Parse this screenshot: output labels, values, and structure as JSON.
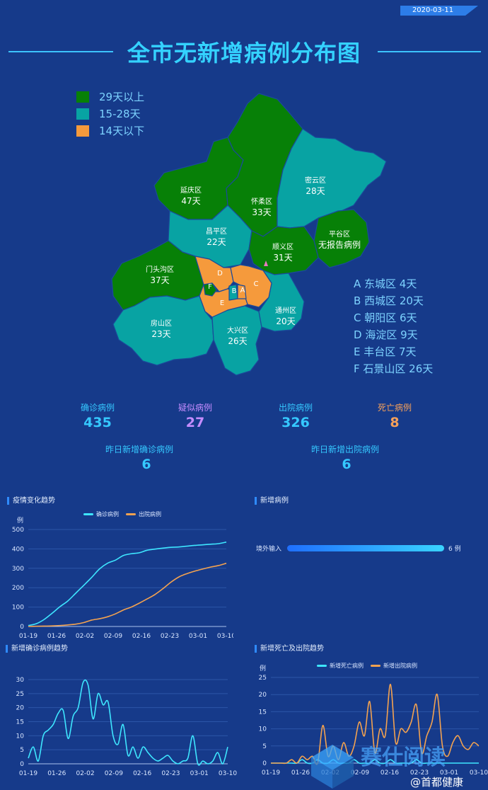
{
  "date": "2020-03-11",
  "title": "全市无新增病例分布图",
  "legend": [
    {
      "label": "29天以上",
      "color": "#078007"
    },
    {
      "label": "15-28天",
      "color": "#08a3a3"
    },
    {
      "label": "14天以下",
      "color": "#f59a3c"
    }
  ],
  "districts": [
    {
      "name": "延庆区",
      "days": "47天"
    },
    {
      "name": "怀柔区",
      "days": "33天"
    },
    {
      "name": "密云区",
      "days": "28天"
    },
    {
      "name": "昌平区",
      "days": "22天"
    },
    {
      "name": "平谷区",
      "days": "无报告病例"
    },
    {
      "name": "顺义区",
      "days": "31天"
    },
    {
      "name": "门头沟区",
      "days": "37天"
    },
    {
      "name": "房山区",
      "days": "23天"
    },
    {
      "name": "大兴区",
      "days": "26天"
    },
    {
      "name": "通州区",
      "days": "20天"
    }
  ],
  "map_letters": [
    "D",
    "C",
    "B",
    "A",
    "F",
    "E"
  ],
  "urban": [
    "A 东城区 4天",
    "B 西城区 20天",
    "C 朝阳区 6天",
    "D 海淀区 9天",
    "E 丰台区 7天",
    "F 石景山区 26天"
  ],
  "stats": [
    {
      "label": "确诊病例",
      "value": "435",
      "color": "#35c8ff"
    },
    {
      "label": "疑似病例",
      "value": "27",
      "color": "#c48cff"
    },
    {
      "label": "出院病例",
      "value": "326",
      "color": "#35c8ff"
    },
    {
      "label": "死亡病例",
      "value": "8",
      "color": "#f5a05a"
    }
  ],
  "yesterday": [
    {
      "label": "昨日新增确诊病例",
      "value": "6"
    },
    {
      "label": "昨日新增出院病例",
      "value": "6"
    }
  ],
  "panels": {
    "trend": "疫情变化趋势",
    "new_cases": "新增病例",
    "new_confirmed": "新增确诊病例趋势",
    "death_discharge": "新增死亡及出院趋势"
  },
  "watermark": {
    "brand": "赛仕阅读",
    "weibo": "@首都健康"
  },
  "chart_data": [
    {
      "type": "line",
      "title": "疫情变化趋势",
      "ylabel": "例",
      "ylim": [
        0,
        500
      ],
      "yticks": [
        0,
        100,
        200,
        300,
        400,
        500
      ],
      "xticks": [
        "01-19",
        "01-26",
        "02-02",
        "02-09",
        "02-16",
        "02-23",
        "03-01",
        "03-10"
      ],
      "x": [
        "01-19",
        "01-21",
        "01-23",
        "01-25",
        "01-27",
        "01-29",
        "01-31",
        "02-02",
        "02-04",
        "02-06",
        "02-08",
        "02-10",
        "02-12",
        "02-14",
        "02-16",
        "02-18",
        "02-20",
        "02-22",
        "02-24",
        "02-26",
        "02-28",
        "03-01",
        "03-03",
        "03-05",
        "03-07",
        "03-10"
      ],
      "series": [
        {
          "name": "确诊病例",
          "color": "#3ee6ff",
          "values": [
            5,
            14,
            36,
            68,
            102,
            132,
            172,
            212,
            253,
            297,
            326,
            342,
            366,
            375,
            380,
            393,
            399,
            404,
            408,
            410,
            414,
            418,
            421,
            424,
            427,
            435
          ]
        },
        {
          "name": "出院病例",
          "color": "#f3a250",
          "values": [
            0,
            1,
            2,
            3,
            5,
            8,
            12,
            20,
            33,
            40,
            50,
            65,
            85,
            100,
            120,
            142,
            165,
            195,
            228,
            255,
            272,
            285,
            296,
            306,
            314,
            326
          ]
        }
      ]
    },
    {
      "type": "bar",
      "title": "新增病例",
      "categories": [
        "境外输入"
      ],
      "values": [
        6
      ],
      "value_labels": [
        "6 例"
      ]
    },
    {
      "type": "line",
      "title": "新增确诊病例趋势",
      "ylim": [
        0,
        30
      ],
      "yticks": [
        0,
        5,
        10,
        15,
        20,
        25,
        30
      ],
      "xticks": [
        "01-19",
        "01-26",
        "02-02",
        "02-09",
        "02-16",
        "02-23",
        "03-01",
        "03-10"
      ],
      "series": [
        {
          "name": "新增确诊病例",
          "color": "#3ee6ff",
          "values": [
            2,
            6,
            1,
            10,
            12,
            14,
            18,
            19,
            9,
            17,
            20,
            29,
            28,
            16,
            25,
            21,
            22,
            10,
            7,
            14,
            3,
            6,
            2,
            6,
            4,
            2,
            1,
            2,
            3,
            1,
            0,
            1,
            2,
            10,
            0,
            1,
            0,
            1,
            4,
            0,
            6
          ]
        }
      ]
    },
    {
      "type": "line",
      "title": "新增死亡及出院趋势",
      "ylabel": "例",
      "ylim": [
        0,
        25
      ],
      "yticks": [
        0,
        5,
        10,
        15,
        20,
        25
      ],
      "xticks": [
        "01-19",
        "01-26",
        "02-02",
        "02-09",
        "02-16",
        "02-23",
        "03-01",
        "03-10"
      ],
      "series": [
        {
          "name": "新增死亡病例",
          "color": "#3ee6ff",
          "values": [
            0,
            0,
            0,
            0,
            0,
            0,
            1,
            0,
            0,
            1,
            0,
            0,
            1,
            0,
            0,
            0,
            1,
            0,
            0,
            0,
            1,
            0,
            0,
            1,
            0,
            0,
            0,
            0,
            1,
            0,
            0,
            0,
            0,
            0,
            0,
            0,
            0,
            0,
            0,
            0,
            0
          ]
        },
        {
          "name": "新增出院病例",
          "color": "#f3a250",
          "values": [
            0,
            0,
            0,
            0,
            1,
            0,
            2,
            1,
            2,
            0,
            11,
            2,
            5,
            1,
            6,
            2,
            5,
            12,
            8,
            18,
            3,
            10,
            8,
            23,
            6,
            10,
            9,
            12,
            17,
            3,
            8,
            12,
            20,
            5,
            2,
            6,
            8,
            5,
            4,
            6,
            5
          ]
        }
      ]
    }
  ]
}
